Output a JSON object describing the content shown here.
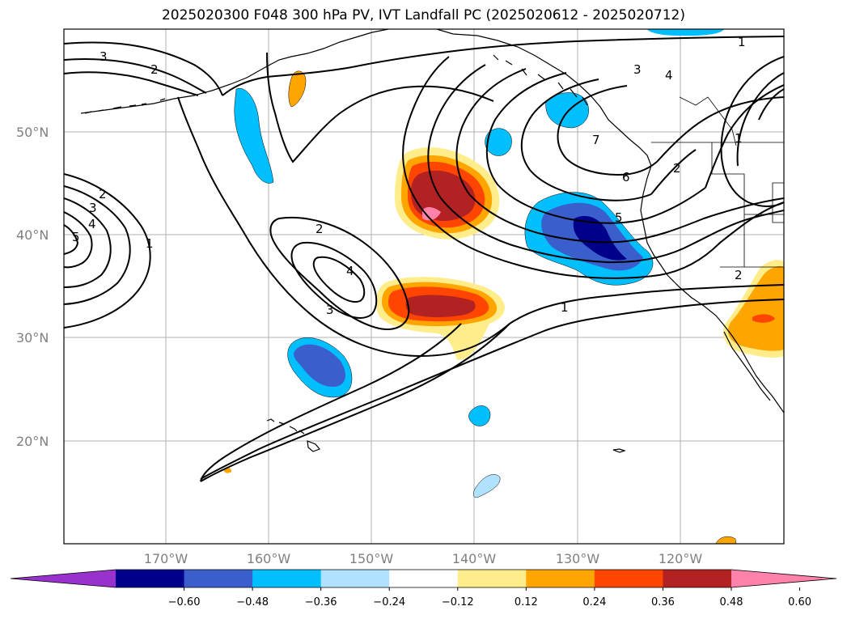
{
  "title": "2025020300 F048 300 hPa PV, IVT Landfall PC (2025020612 - 2025020712)",
  "lat_labels": [
    "50°N",
    "40°N",
    "30°N",
    "20°N"
  ],
  "lon_labels": [
    "170°W",
    "160°W",
    "150°W",
    "140°W",
    "130°W",
    "120°W"
  ],
  "colorbar": {
    "ticks": [
      "−0.60",
      "−0.48",
      "−0.36",
      "−0.24",
      "−0.12",
      "0.12",
      "0.24",
      "0.36",
      "0.48",
      "0.60"
    ],
    "colors": [
      "#9932cc",
      "#00008b",
      "#3a5fcd",
      "#00bfff",
      "#b0e2ff",
      "#ffffff",
      "#ffec8b",
      "#ffa500",
      "#ff4500",
      "#b22222",
      "#ff82ab"
    ]
  },
  "contour_labels": [
    "3",
    "2",
    "1",
    "4",
    "3",
    "7",
    "6",
    "5",
    "2",
    "1",
    "2",
    "3",
    "4",
    "5",
    "1",
    "2",
    "4",
    "3",
    "1",
    "2"
  ],
  "colors": {
    "grid": "#b0b0b0",
    "coast": "#000000",
    "contour": "#000000"
  }
}
